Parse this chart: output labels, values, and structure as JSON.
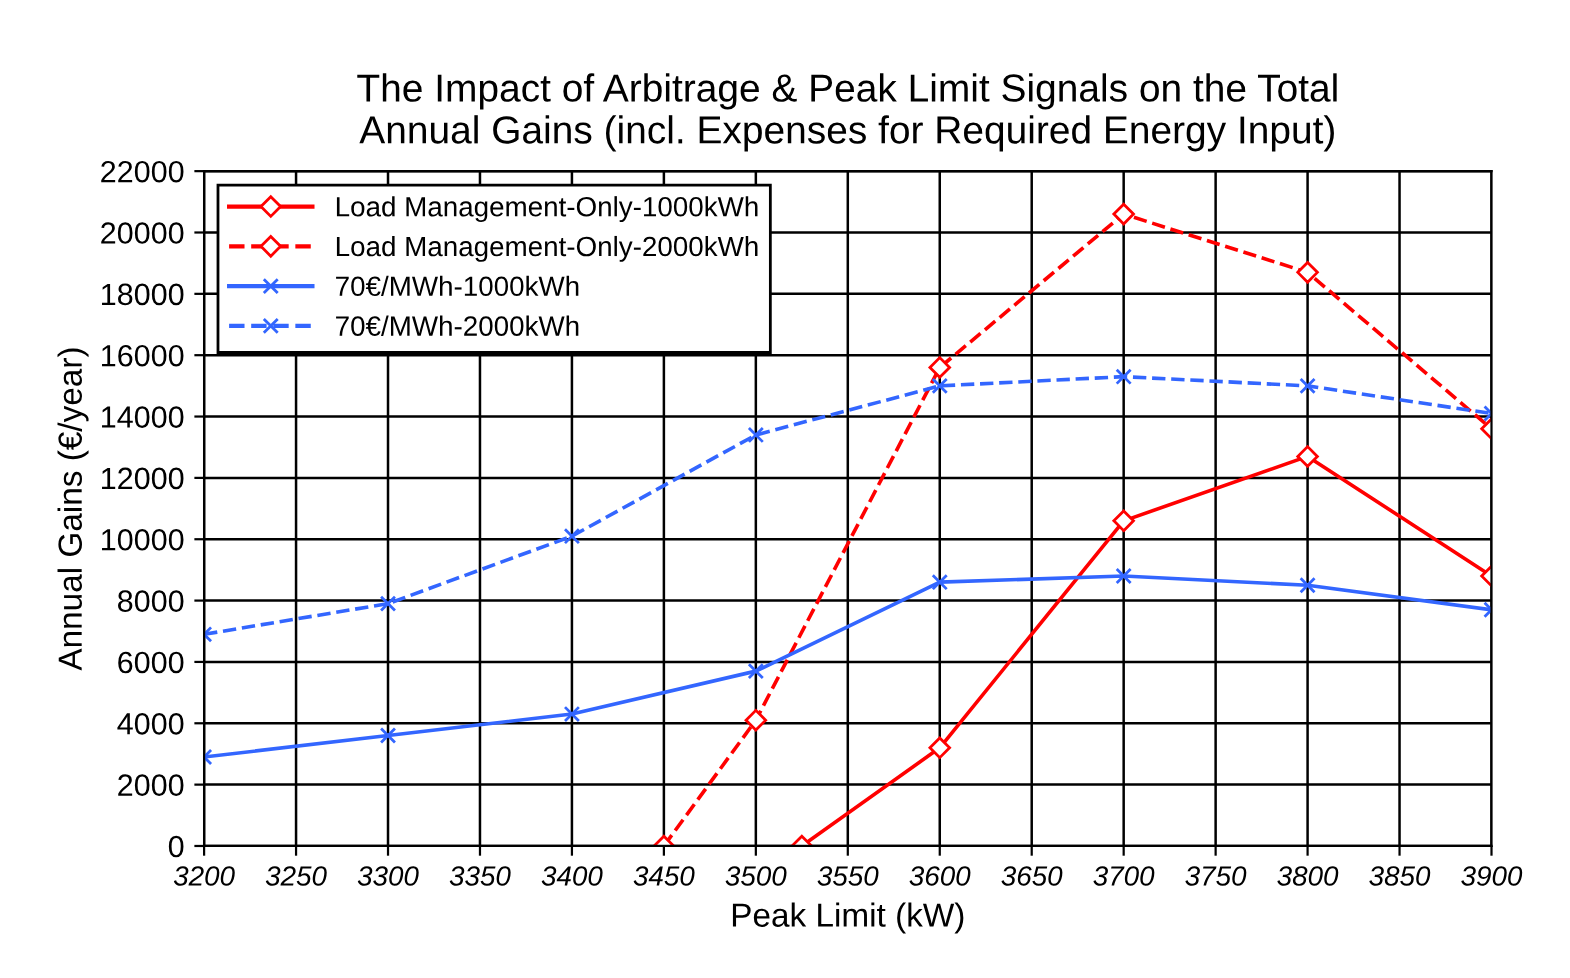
{
  "chart_data": {
    "type": "line",
    "title": "The Impact of Arbitrage & Peak Limit Signals on the Total\nAnnual Gains (incl. Expenses for Required Energy Input)",
    "xlabel": "Peak Limit (kW)",
    "ylabel": "Annual Gains (€/year)",
    "xlim": [
      3200,
      3900
    ],
    "xticks": [
      3200,
      3250,
      3300,
      3350,
      3400,
      3450,
      3500,
      3550,
      3600,
      3650,
      3700,
      3750,
      3800,
      3850,
      3900
    ],
    "ylim": [
      0,
      22000
    ],
    "yticks": [
      0,
      2000,
      4000,
      6000,
      8000,
      10000,
      12000,
      14000,
      16000,
      18000,
      20000,
      22000
    ],
    "grid": true,
    "legend": "top left",
    "series": [
      {
        "name": "Load Management-Only-1000kWh",
        "color": "#ff0000",
        "marker": "diamond",
        "line_style": "solid",
        "x": [
          3525,
          3600,
          3700,
          3800,
          3900
        ],
        "values": [
          0,
          3200,
          10600,
          12700,
          8800
        ]
      },
      {
        "name": "Load Management-Only-2000kWh",
        "color": "#ff0000",
        "marker": "diamond",
        "line_style": "dashed",
        "x": [
          3450,
          3500,
          3600,
          3700,
          3800,
          3900
        ],
        "values": [
          0,
          4100,
          15600,
          20600,
          18700,
          13600
        ]
      },
      {
        "name": "70€/MWh-1000kWh",
        "color": "#3366ff",
        "marker": "cross",
        "line_style": "solid",
        "x": [
          3200,
          3300,
          3400,
          3500,
          3600,
          3700,
          3800,
          3900
        ],
        "values": [
          2900,
          3600,
          4300,
          5700,
          8600,
          8800,
          8500,
          7700
        ]
      },
      {
        "name": "70€/MWh-2000kWh",
        "color": "#3366ff",
        "marker": "cross",
        "line_style": "dashed",
        "x": [
          3200,
          3300,
          3400,
          3500,
          3600,
          3700,
          3800,
          3900
        ],
        "values": [
          6900,
          7900,
          10100,
          13400,
          15000,
          15300,
          15000,
          14100
        ]
      }
    ]
  }
}
